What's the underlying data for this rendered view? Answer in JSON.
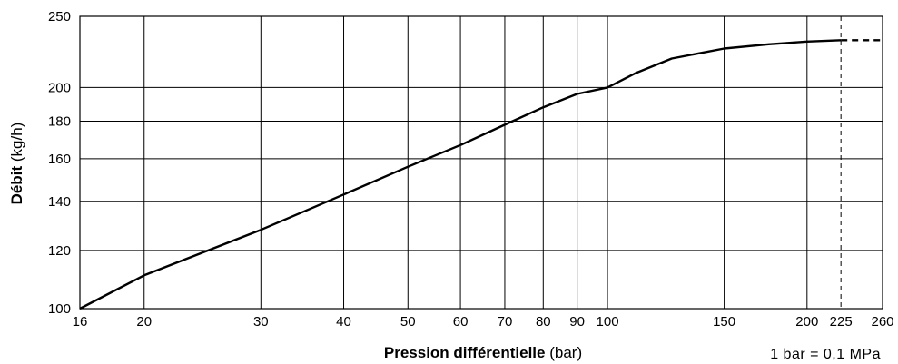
{
  "chart_data": {
    "type": "line",
    "title": "",
    "xlabel_bold": "Pression différentielle",
    "xlabel_unit": " (bar)",
    "ylabel_bold": "Débit",
    "ylabel_unit": " (kg/h)",
    "x_scale": "log",
    "y_scale": "log",
    "xlim": [
      16,
      260
    ],
    "ylim": [
      100,
      250
    ],
    "x_ticks": [
      16,
      20,
      30,
      40,
      50,
      60,
      70,
      80,
      90,
      100,
      150,
      200,
      225,
      260
    ],
    "x_tick_labels": [
      "16",
      "20",
      "30",
      "40",
      "50",
      "60",
      "70",
      "80",
      "90",
      "100",
      "150",
      "200",
      "225",
      "260"
    ],
    "y_ticks": [
      100,
      120,
      140,
      160,
      180,
      200,
      250
    ],
    "y_tick_labels": [
      "100",
      "120",
      "140",
      "160",
      "180",
      "200",
      "250"
    ],
    "grid": true,
    "series": [
      {
        "style": "solid",
        "x": [
          16,
          20,
          30,
          40,
          50,
          60,
          70,
          80,
          90,
          100,
          110,
          125,
          150,
          175,
          200,
          225
        ],
        "y": [
          100,
          111,
          128,
          143,
          156,
          167,
          178,
          188,
          196,
          200,
          209,
          219,
          226,
          229,
          231,
          232
        ]
      },
      {
        "style": "dashed",
        "x": [
          225,
          260
        ],
        "y": [
          232,
          232
        ]
      }
    ],
    "reference_line": {
      "axis": "x",
      "value": 225,
      "style": "dashed"
    },
    "annotation": "1 bar = 0,1 MPa"
  }
}
